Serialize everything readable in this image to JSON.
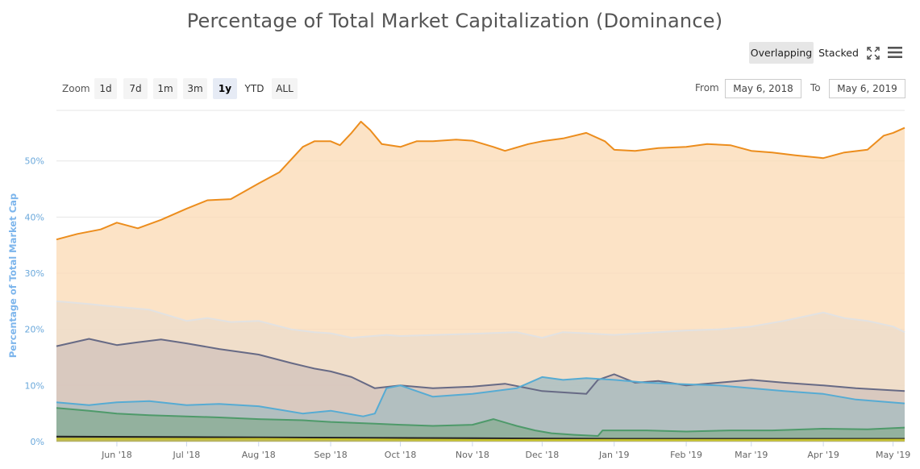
{
  "title": "Percentage of Total Market Capitalization (Dominance)",
  "view_modes": [
    {
      "label": "Overlapping",
      "active": true
    },
    {
      "label": "Stacked",
      "active": false
    }
  ],
  "icons": {
    "fullscreen": "fullscreen-icon",
    "menu": "hamburger-menu-icon"
  },
  "zoom": {
    "label": "Zoom",
    "buttons": [
      {
        "label": "1d",
        "active": false
      },
      {
        "label": "7d",
        "active": false
      },
      {
        "label": "1m",
        "active": false
      },
      {
        "label": "3m",
        "active": false
      },
      {
        "label": "1y",
        "active": true
      },
      {
        "label": "YTD",
        "active": false
      },
      {
        "label": "ALL",
        "active": false
      }
    ]
  },
  "range": {
    "from_label": "From",
    "from_value": "May 6, 2018",
    "to_label": "To",
    "to_value": "May 6, 2019"
  },
  "chart_data": {
    "type": "area",
    "title": "Percentage of Total Market Capitalization (Dominance)",
    "ylabel": "Percentage of Total Market Cap",
    "xlabel": "",
    "ylim": [
      0,
      59
    ],
    "xlim": [
      "2018-05-06",
      "2019-05-06"
    ],
    "y_ticks": [
      "0%",
      "10%",
      "20%",
      "30%",
      "40%",
      "50%"
    ],
    "x_ticks": [
      {
        "label": "Jun '18",
        "date": "2018-06-01"
      },
      {
        "label": "Jul '18",
        "date": "2018-07-01"
      },
      {
        "label": "Aug '18",
        "date": "2018-08-01"
      },
      {
        "label": "Sep '18",
        "date": "2018-09-01"
      },
      {
        "label": "Oct '18",
        "date": "2018-10-01"
      },
      {
        "label": "Nov '18",
        "date": "2018-11-01"
      },
      {
        "label": "Dec '18",
        "date": "2018-12-01"
      },
      {
        "label": "Jan '19",
        "date": "2019-01-01"
      },
      {
        "label": "Feb '19",
        "date": "2019-02-01"
      },
      {
        "label": "Mar '19",
        "date": "2019-03-01"
      },
      {
        "label": "Apr '19",
        "date": "2019-04-01"
      },
      {
        "label": "May '19",
        "date": "2019-05-01"
      }
    ],
    "grid": true,
    "legend": "none",
    "series": [
      {
        "line": "#ec8d1d",
        "fill": "#fbdcb8",
        "points": [
          [
            "2018-05-06",
            36.0
          ],
          [
            "2018-05-15",
            37.0
          ],
          [
            "2018-05-25",
            37.8
          ],
          [
            "2018-06-01",
            39.0
          ],
          [
            "2018-06-10",
            38.0
          ],
          [
            "2018-06-20",
            39.5
          ],
          [
            "2018-07-01",
            41.5
          ],
          [
            "2018-07-10",
            43.0
          ],
          [
            "2018-07-20",
            43.2
          ],
          [
            "2018-08-01",
            46.0
          ],
          [
            "2018-08-10",
            48.0
          ],
          [
            "2018-08-20",
            52.5
          ],
          [
            "2018-08-25",
            53.5
          ],
          [
            "2018-09-01",
            53.5
          ],
          [
            "2018-09-05",
            52.8
          ],
          [
            "2018-09-10",
            55.0
          ],
          [
            "2018-09-14",
            57.0
          ],
          [
            "2018-09-18",
            55.5
          ],
          [
            "2018-09-23",
            53.0
          ],
          [
            "2018-10-01",
            52.5
          ],
          [
            "2018-10-08",
            53.5
          ],
          [
            "2018-10-15",
            53.5
          ],
          [
            "2018-10-25",
            53.8
          ],
          [
            "2018-11-01",
            53.6
          ],
          [
            "2018-11-10",
            52.5
          ],
          [
            "2018-11-15",
            51.8
          ],
          [
            "2018-11-25",
            53.0
          ],
          [
            "2018-12-01",
            53.5
          ],
          [
            "2018-12-10",
            54.0
          ],
          [
            "2018-12-20",
            55.0
          ],
          [
            "2018-12-28",
            53.5
          ],
          [
            "2019-01-01",
            52.0
          ],
          [
            "2019-01-10",
            51.8
          ],
          [
            "2019-01-20",
            52.3
          ],
          [
            "2019-02-01",
            52.5
          ],
          [
            "2019-02-10",
            53.0
          ],
          [
            "2019-02-20",
            52.8
          ],
          [
            "2019-03-01",
            51.8
          ],
          [
            "2019-03-10",
            51.5
          ],
          [
            "2019-03-20",
            51.0
          ],
          [
            "2019-04-01",
            50.5
          ],
          [
            "2019-04-10",
            51.5
          ],
          [
            "2019-04-20",
            52.0
          ],
          [
            "2019-04-27",
            54.5
          ],
          [
            "2019-05-01",
            55.0
          ],
          [
            "2019-05-06",
            55.9
          ]
        ]
      },
      {
        "line": "#e2e2e2",
        "fill": "#ecdccb",
        "points": [
          [
            "2018-05-06",
            25.0
          ],
          [
            "2018-05-20",
            24.5
          ],
          [
            "2018-06-01",
            24.0
          ],
          [
            "2018-06-15",
            23.5
          ],
          [
            "2018-07-01",
            21.5
          ],
          [
            "2018-07-10",
            22.0
          ],
          [
            "2018-07-20",
            21.3
          ],
          [
            "2018-08-01",
            21.5
          ],
          [
            "2018-08-15",
            20.0
          ],
          [
            "2018-08-25",
            19.5
          ],
          [
            "2018-09-01",
            19.3
          ],
          [
            "2018-09-10",
            18.5
          ],
          [
            "2018-09-25",
            19.0
          ],
          [
            "2018-10-01",
            18.8
          ],
          [
            "2018-11-01",
            19.2
          ],
          [
            "2018-11-20",
            19.5
          ],
          [
            "2018-12-01",
            18.5
          ],
          [
            "2018-12-10",
            19.5
          ],
          [
            "2018-12-20",
            19.3
          ],
          [
            "2019-01-01",
            19.0
          ],
          [
            "2019-01-20",
            19.5
          ],
          [
            "2019-02-01",
            19.8
          ],
          [
            "2019-02-15",
            20.0
          ],
          [
            "2019-03-01",
            20.5
          ],
          [
            "2019-03-15",
            21.5
          ],
          [
            "2019-04-01",
            23.0
          ],
          [
            "2019-04-10",
            22.0
          ],
          [
            "2019-04-20",
            21.5
          ],
          [
            "2019-05-01",
            20.5
          ],
          [
            "2019-05-06",
            19.5
          ]
        ]
      },
      {
        "line": "#676a85",
        "fill": "#d3c3bc",
        "points": [
          [
            "2018-05-06",
            17.0
          ],
          [
            "2018-05-20",
            18.3
          ],
          [
            "2018-06-01",
            17.2
          ],
          [
            "2018-06-10",
            17.7
          ],
          [
            "2018-06-20",
            18.2
          ],
          [
            "2018-07-01",
            17.5
          ],
          [
            "2018-07-15",
            16.5
          ],
          [
            "2018-08-01",
            15.5
          ],
          [
            "2018-08-15",
            14.0
          ],
          [
            "2018-08-25",
            13.0
          ],
          [
            "2018-09-01",
            12.5
          ],
          [
            "2018-09-10",
            11.5
          ],
          [
            "2018-09-20",
            9.5
          ],
          [
            "2018-10-01",
            10.0
          ],
          [
            "2018-10-15",
            9.5
          ],
          [
            "2018-11-01",
            9.8
          ],
          [
            "2018-11-15",
            10.3
          ],
          [
            "2018-12-01",
            9.0
          ],
          [
            "2018-12-20",
            8.5
          ],
          [
            "2018-12-25",
            11.0
          ],
          [
            "2019-01-01",
            12.0
          ],
          [
            "2019-01-10",
            10.5
          ],
          [
            "2019-01-20",
            10.8
          ],
          [
            "2019-02-01",
            10.0
          ],
          [
            "2019-02-15",
            10.5
          ],
          [
            "2019-03-01",
            11.0
          ],
          [
            "2019-03-15",
            10.5
          ],
          [
            "2019-04-01",
            10.0
          ],
          [
            "2019-04-15",
            9.5
          ],
          [
            "2019-05-06",
            9.0
          ]
        ]
      },
      {
        "line": "#56abd3",
        "fill": "#a7bdc0",
        "points": [
          [
            "2018-05-06",
            7.0
          ],
          [
            "2018-05-20",
            6.5
          ],
          [
            "2018-06-01",
            7.0
          ],
          [
            "2018-06-15",
            7.2
          ],
          [
            "2018-07-01",
            6.5
          ],
          [
            "2018-07-15",
            6.7
          ],
          [
            "2018-08-01",
            6.3
          ],
          [
            "2018-08-20",
            5.0
          ],
          [
            "2018-09-01",
            5.5
          ],
          [
            "2018-09-15",
            4.5
          ],
          [
            "2018-09-20",
            5.0
          ],
          [
            "2018-09-25",
            9.5
          ],
          [
            "2018-10-01",
            10.0
          ],
          [
            "2018-10-15",
            8.0
          ],
          [
            "2018-11-01",
            8.5
          ],
          [
            "2018-11-20",
            9.5
          ],
          [
            "2018-12-01",
            11.5
          ],
          [
            "2018-12-10",
            11.0
          ],
          [
            "2018-12-20",
            11.3
          ],
          [
            "2019-01-01",
            11.0
          ],
          [
            "2019-01-15",
            10.5
          ],
          [
            "2019-02-01",
            10.2
          ],
          [
            "2019-02-15",
            10.0
          ],
          [
            "2019-03-01",
            9.5
          ],
          [
            "2019-03-15",
            9.0
          ],
          [
            "2019-04-01",
            8.5
          ],
          [
            "2019-04-15",
            7.5
          ],
          [
            "2019-05-06",
            6.8
          ]
        ]
      },
      {
        "line": "#4e9a6a",
        "fill": "#8bae95",
        "points": [
          [
            "2018-05-06",
            6.0
          ],
          [
            "2018-05-20",
            5.5
          ],
          [
            "2018-06-01",
            5.0
          ],
          [
            "2018-06-15",
            4.7
          ],
          [
            "2018-07-01",
            4.5
          ],
          [
            "2018-07-15",
            4.3
          ],
          [
            "2018-08-01",
            4.0
          ],
          [
            "2018-08-20",
            3.8
          ],
          [
            "2018-09-01",
            3.5
          ],
          [
            "2018-09-20",
            3.2
          ],
          [
            "2018-10-01",
            3.0
          ],
          [
            "2018-10-15",
            2.8
          ],
          [
            "2018-11-01",
            3.0
          ],
          [
            "2018-11-10",
            4.0
          ],
          [
            "2018-11-20",
            2.8
          ],
          [
            "2018-11-28",
            2.0
          ],
          [
            "2018-12-05",
            1.5
          ],
          [
            "2018-12-15",
            1.2
          ],
          [
            "2018-12-25",
            1.0
          ],
          [
            "2018-12-27",
            2.0
          ],
          [
            "2019-01-15",
            2.0
          ],
          [
            "2019-02-01",
            1.8
          ],
          [
            "2019-02-20",
            2.0
          ],
          [
            "2019-03-10",
            2.0
          ],
          [
            "2019-04-01",
            2.3
          ],
          [
            "2019-04-20",
            2.2
          ],
          [
            "2019-05-06",
            2.5
          ]
        ]
      },
      {
        "line": "#222222",
        "fill": "#7d7f5a",
        "points": [
          [
            "2018-05-06",
            0.9
          ],
          [
            "2018-07-01",
            0.8
          ],
          [
            "2018-09-01",
            0.7
          ],
          [
            "2018-11-01",
            0.6
          ],
          [
            "2019-01-01",
            0.5
          ],
          [
            "2019-03-01",
            0.5
          ],
          [
            "2019-05-06",
            0.5
          ]
        ]
      },
      {
        "line": "#c9c62a",
        "fill": "#c9c256",
        "points": [
          [
            "2018-05-06",
            0.5
          ],
          [
            "2018-08-01",
            0.5
          ],
          [
            "2018-11-01",
            0.3
          ],
          [
            "2019-02-01",
            0.3
          ],
          [
            "2019-05-06",
            0.35
          ]
        ]
      }
    ]
  }
}
